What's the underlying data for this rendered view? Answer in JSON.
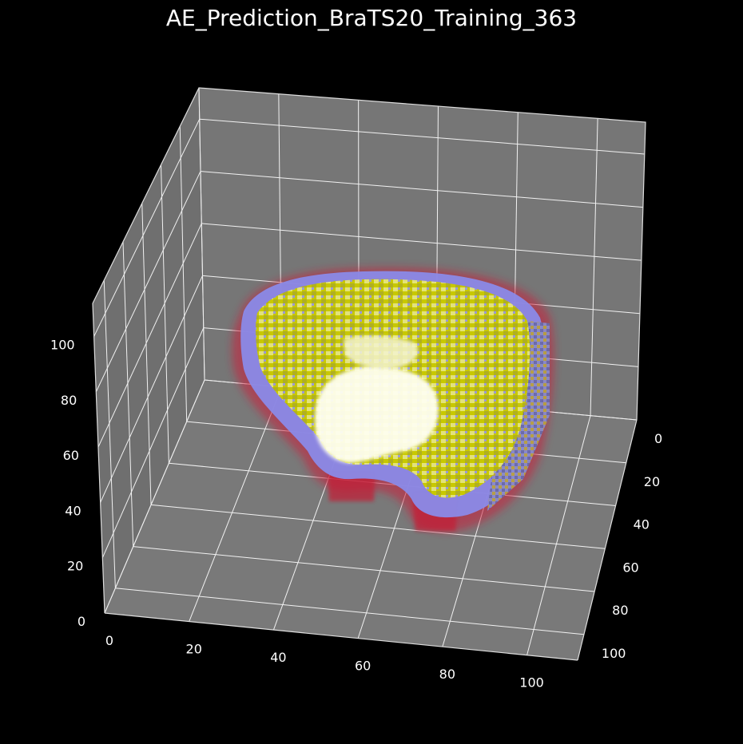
{
  "chart_data": {
    "type": "voxel-3d",
    "title": "AE_Prediction_BraTS20_Training_363",
    "x_ticks": [
      "0",
      "20",
      "40",
      "60",
      "80",
      "100"
    ],
    "y_ticks": [
      "0",
      "20",
      "40",
      "60",
      "80",
      "100"
    ],
    "z_ticks": [
      "0",
      "20",
      "40",
      "60",
      "80",
      "100"
    ],
    "x_range": [
      0,
      112
    ],
    "y_range": [
      0,
      112
    ],
    "z_range": [
      0,
      112
    ],
    "grid": true,
    "colors": {
      "background": "#000000",
      "pane": "#767676",
      "grid": "#ffffff",
      "edema": "#cc1f3a",
      "enhancing": "#8c8cff",
      "core": "#c8c800",
      "necrotic": "#ffffee"
    }
  }
}
